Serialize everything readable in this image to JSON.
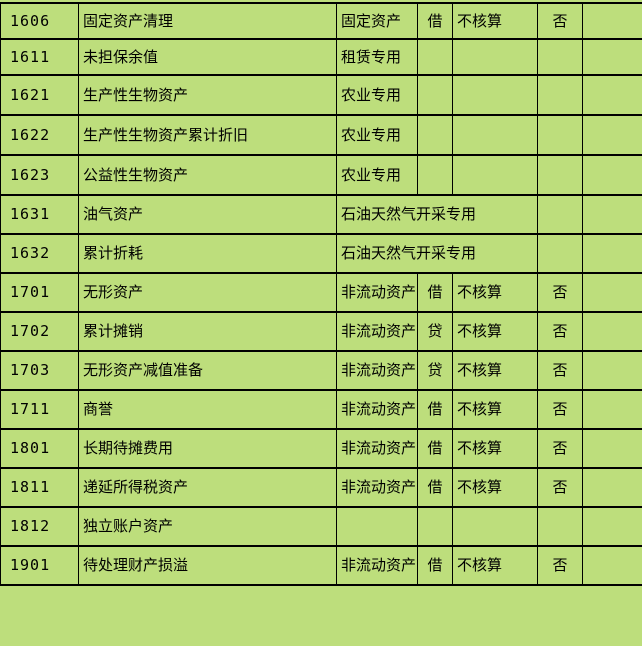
{
  "colors": {
    "background": "#bdde7c",
    "grid_line": "#000000",
    "text": "#000000"
  },
  "table": {
    "rows": [
      {
        "code": "1606",
        "name": "固定资产清理",
        "category": "固定资产",
        "direction": "借",
        "assist": "不核算",
        "quantity": "否",
        "merged_category": false
      },
      {
        "code": "1611",
        "name": "未担保余值",
        "category": "租赁专用",
        "direction": "",
        "assist": "",
        "quantity": "",
        "merged_category": false
      },
      {
        "code": "1621",
        "name": "生产性生物资产",
        "category": "农业专用",
        "direction": "",
        "assist": "",
        "quantity": "",
        "merged_category": false
      },
      {
        "code": "1622",
        "name": "生产性生物资产累计折旧",
        "category": "农业专用",
        "direction": "",
        "assist": "",
        "quantity": "",
        "merged_category": false
      },
      {
        "code": "1623",
        "name": "公益性生物资产",
        "category": "农业专用",
        "direction": "",
        "assist": "",
        "quantity": "",
        "merged_category": false
      },
      {
        "code": "1631",
        "name": "油气资产",
        "category": "石油天然气开采专用",
        "direction": "",
        "assist": "",
        "quantity": "",
        "merged_category": true
      },
      {
        "code": "1632",
        "name": "累计折耗",
        "category": "石油天然气开采专用",
        "direction": "",
        "assist": "",
        "quantity": "",
        "merged_category": true
      },
      {
        "code": "1701",
        "name": "无形资产",
        "category": "非流动资产",
        "direction": "借",
        "assist": "不核算",
        "quantity": "否",
        "merged_category": false
      },
      {
        "code": "1702",
        "name": "累计摊销",
        "category": "非流动资产",
        "direction": "贷",
        "assist": "不核算",
        "quantity": "否",
        "merged_category": false
      },
      {
        "code": "1703",
        "name": "无形资产减值准备",
        "category": "非流动资产",
        "direction": "贷",
        "assist": "不核算",
        "quantity": "否",
        "merged_category": false
      },
      {
        "code": "1711",
        "name": "商誉",
        "category": "非流动资产",
        "direction": "借",
        "assist": "不核算",
        "quantity": "否",
        "merged_category": false
      },
      {
        "code": "1801",
        "name": "长期待摊费用",
        "category": "非流动资产",
        "direction": "借",
        "assist": "不核算",
        "quantity": "否",
        "merged_category": false
      },
      {
        "code": "1811",
        "name": "递延所得税资产",
        "category": "非流动资产",
        "direction": "借",
        "assist": "不核算",
        "quantity": "否",
        "merged_category": false
      },
      {
        "code": "1812",
        "name": "独立账户资产",
        "category": "",
        "direction": "",
        "assist": "",
        "quantity": "",
        "merged_category": false
      },
      {
        "code": "1901",
        "name": "待处理财产损溢",
        "category": "非流动资产",
        "direction": "借",
        "assist": "不核算",
        "quantity": "否",
        "merged_category": false
      }
    ]
  }
}
